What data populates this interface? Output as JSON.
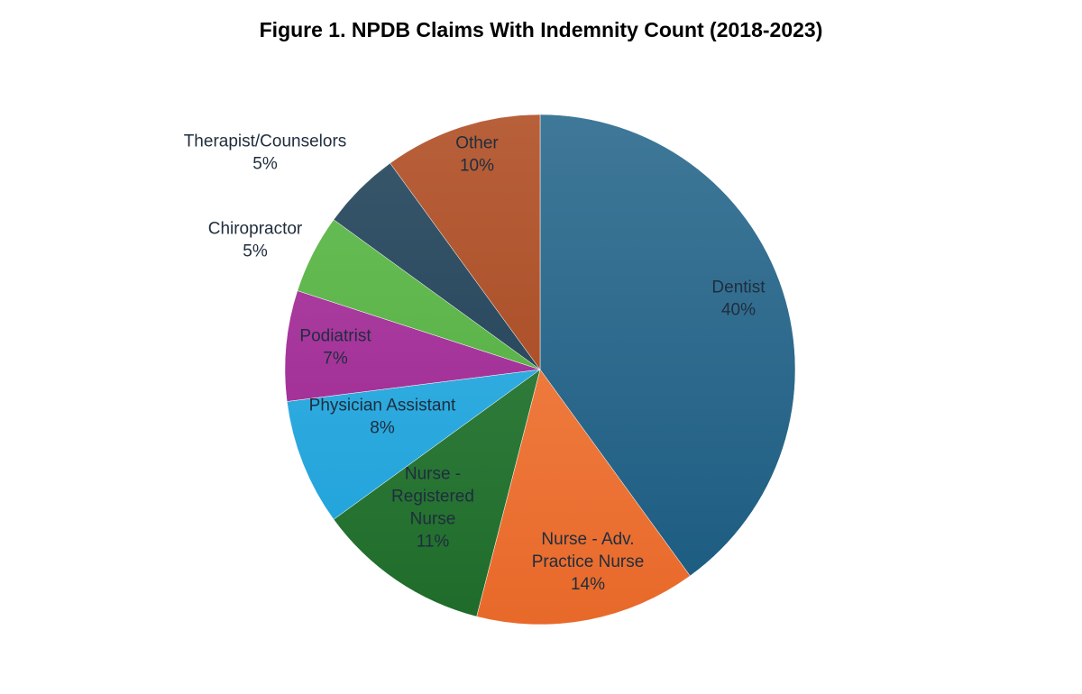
{
  "chart_data": {
    "type": "pie",
    "title": "Figure 1. NPDB Claims With Indemnity Count (2018-2023)",
    "slices": [
      {
        "label": [
          "Dentist"
        ],
        "value_label": "40%",
        "value": 40,
        "color": "#1a5a80",
        "highlight": "#3f7898"
      },
      {
        "label": [
          "Nurse - Adv.",
          "Practice Nurse"
        ],
        "value_label": "14%",
        "value": 14,
        "color": "#e8692a",
        "highlight": "#f48a50"
      },
      {
        "label": [
          "Nurse -",
          "Registered",
          "Nurse"
        ],
        "value_label": "11%",
        "value": 11,
        "color": "#1e6b2a",
        "highlight": "#3f8a4a"
      },
      {
        "label": [
          "Physician Assistant"
        ],
        "value_label": "8%",
        "value": 8,
        "color": "#1aa0d8",
        "highlight": "#44b6e6"
      },
      {
        "label": [
          "Podiatrist"
        ],
        "value_label": "7%",
        "value": 7,
        "color": "#9a1e8e",
        "highlight": "#b04aa6"
      },
      {
        "label": [
          "Chiropractor"
        ],
        "value_label": "5%",
        "value": 5,
        "color": "#4aa838",
        "highlight": "#6cc05a"
      },
      {
        "label": [
          "Therapist/Counselors"
        ],
        "value_label": "5%",
        "value": 5,
        "color": "#1b3a50",
        "highlight": "#3a586c"
      },
      {
        "label": [
          "Other"
        ],
        "value_label": "10%",
        "value": 10,
        "color": "#a0421a",
        "highlight": "#b8603a"
      }
    ]
  }
}
